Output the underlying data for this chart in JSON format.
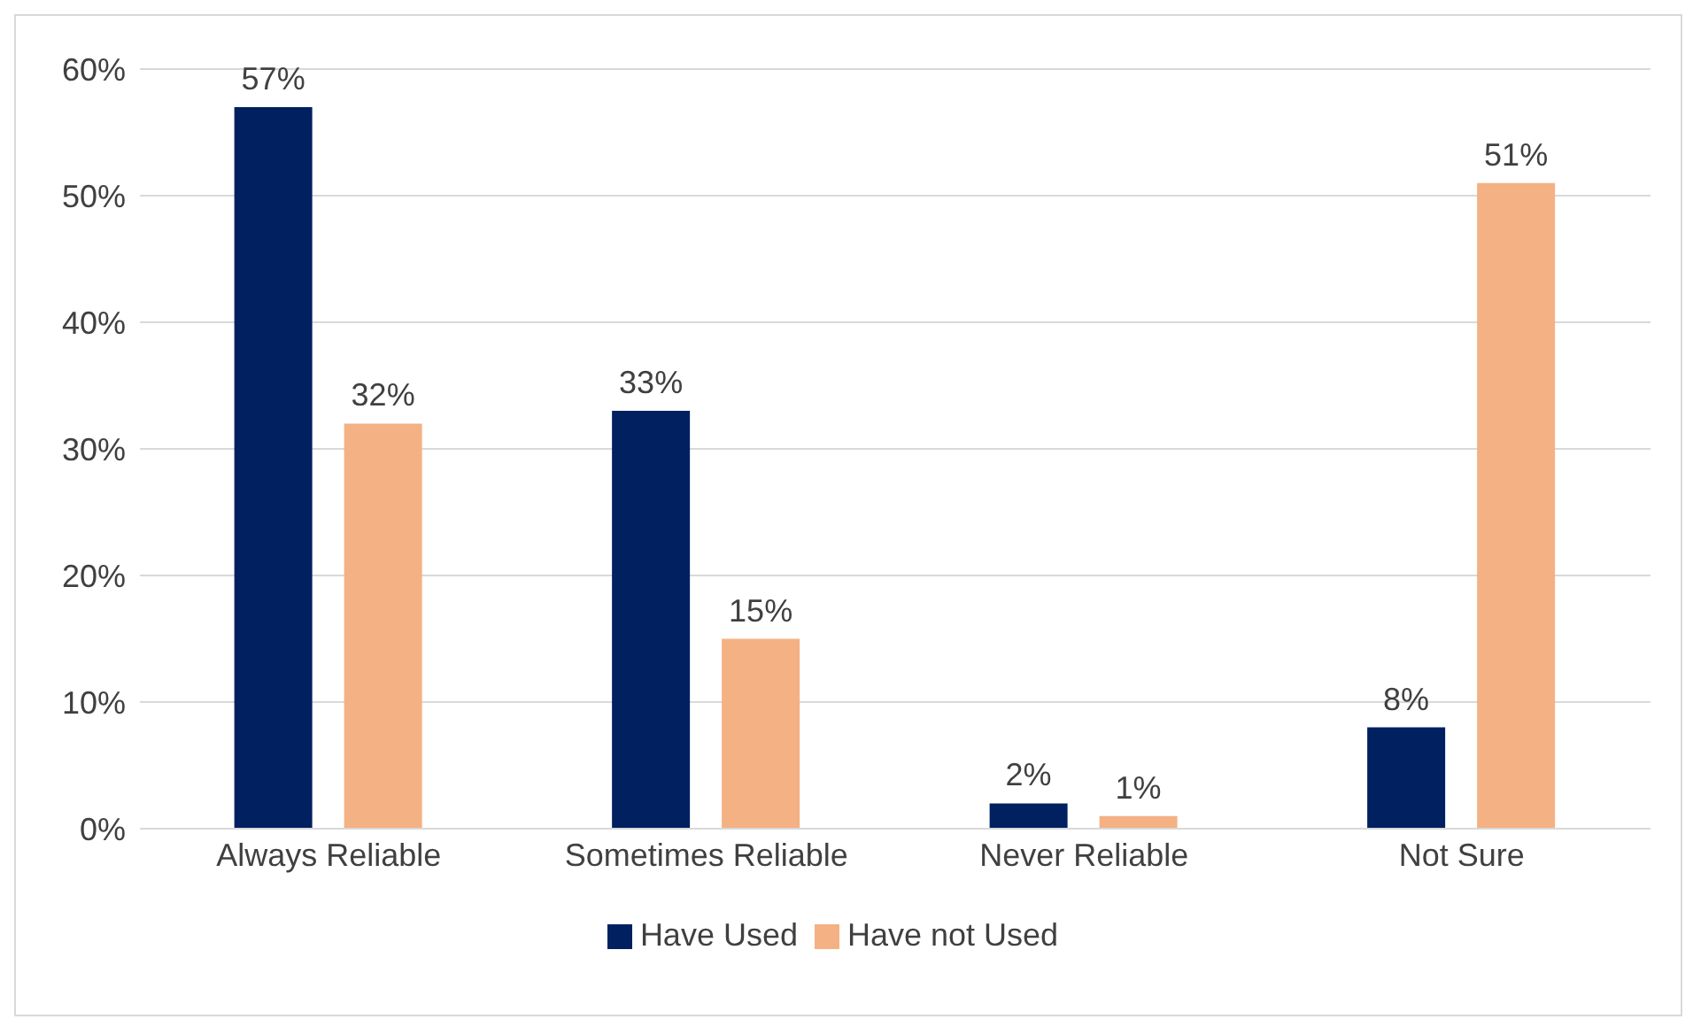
{
  "chart_data": {
    "type": "bar",
    "categories": [
      "Always Reliable",
      "Sometimes Reliable",
      "Never Reliable",
      "Not Sure"
    ],
    "series": [
      {
        "name": "Have Used",
        "color": "#002060",
        "values": [
          57,
          33,
          2,
          8
        ],
        "value_labels": [
          "57%",
          "33%",
          "2%",
          "8%"
        ]
      },
      {
        "name": "Have not Used",
        "color": "#f4b183",
        "values": [
          32,
          15,
          1,
          51
        ],
        "value_labels": [
          "32%",
          "15%",
          "1%",
          "51%"
        ]
      }
    ],
    "ylim": [
      0,
      60
    ],
    "yticks": [
      {
        "value": 0,
        "label": "0%"
      },
      {
        "value": 10,
        "label": "10%"
      },
      {
        "value": 20,
        "label": "20%"
      },
      {
        "value": 30,
        "label": "30%"
      },
      {
        "value": 40,
        "label": "40%"
      },
      {
        "value": 50,
        "label": "50%"
      },
      {
        "value": 60,
        "label": "60%"
      }
    ],
    "grid": "y",
    "legend": "bottom"
  }
}
